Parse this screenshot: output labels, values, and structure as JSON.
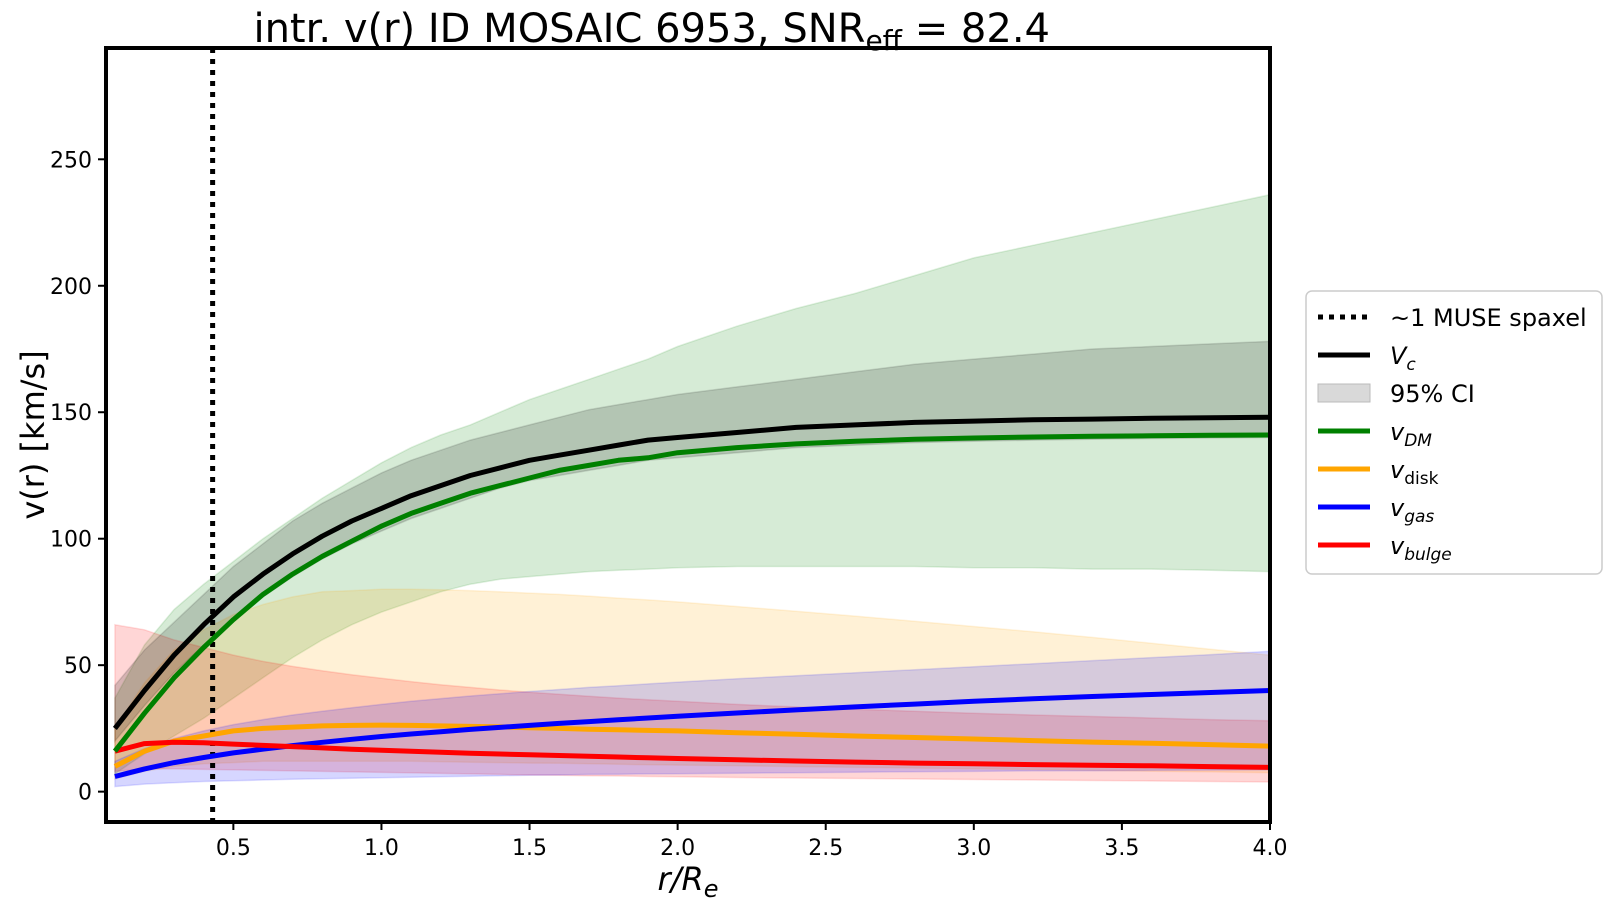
{
  "chart_data": {
    "type": "line",
    "title": {
      "main": "intr. v(r) ID MOSAIC 6953, SNR",
      "sub": "eff",
      "suffix": " = 82.4"
    },
    "xlabel": {
      "main": "r/R",
      "sub": "e"
    },
    "ylabel": "v(r) [km/s]",
    "xlim": [
      0.07,
      4.0
    ],
    "ylim": [
      -12,
      294
    ],
    "xticks": [
      0.5,
      1.0,
      1.5,
      2.0,
      2.5,
      3.0,
      3.5,
      4.0
    ],
    "xtick_labels": [
      "0.5",
      "1.0",
      "1.5",
      "2.0",
      "2.5",
      "3.0",
      "3.5",
      "4.0"
    ],
    "yticks": [
      0,
      50,
      100,
      150,
      200,
      250
    ],
    "ytick_labels": [
      "0",
      "50",
      "100",
      "150",
      "200",
      "250"
    ],
    "x": [
      0.1,
      0.2,
      0.3,
      0.4,
      0.5,
      0.6,
      0.7,
      0.8,
      0.9,
      1.0,
      1.1,
      1.2,
      1.3,
      1.4,
      1.5,
      1.6,
      1.7,
      1.8,
      1.9,
      2.0,
      2.2,
      2.4,
      2.6,
      2.8,
      3.0,
      3.2,
      3.4,
      3.6,
      3.8,
      4.0
    ],
    "spaxel_line_x": 0.43,
    "series": [
      {
        "name": "v_c",
        "label": "V",
        "label_sub": "c",
        "color": "#000000",
        "values": [
          25,
          40,
          54,
          66,
          77,
          86,
          94,
          101,
          107,
          112,
          117,
          121,
          125,
          128,
          131,
          133,
          135,
          137,
          139,
          140,
          142,
          144,
          145,
          146,
          146.5,
          147,
          147.3,
          147.6,
          147.8,
          148
        ],
        "band_lower": [
          20,
          34,
          47,
          58,
          68,
          77,
          85,
          92,
          98,
          103,
          108,
          112,
          116,
          120,
          123,
          125,
          127,
          129,
          131,
          132,
          134,
          136,
          137,
          138,
          138.5,
          139,
          139.3,
          139.6,
          139.8,
          140
        ],
        "band_upper": [
          42,
          56,
          67,
          78,
          89,
          98,
          107,
          114,
          120,
          126,
          131,
          135,
          139,
          142,
          145,
          148,
          151,
          153,
          155,
          157,
          160,
          163,
          166,
          169,
          171,
          173,
          175,
          176,
          177,
          178
        ]
      },
      {
        "name": "v_DM",
        "label": "v",
        "label_sub": "DM",
        "color": "#008000",
        "values": [
          16,
          31,
          45,
          57,
          68,
          78,
          86,
          93,
          99,
          105,
          110,
          114,
          118,
          121,
          124,
          127,
          129,
          131,
          132,
          134,
          136,
          137.5,
          138.5,
          139.3,
          139.8,
          140.2,
          140.5,
          140.7,
          140.9,
          141
        ],
        "band_lower": [
          7,
          15,
          22,
          29,
          37,
          45,
          53,
          60,
          66,
          71,
          75,
          79,
          82,
          84,
          85,
          86,
          87,
          87.5,
          88,
          88.5,
          89,
          89,
          89,
          89,
          88.5,
          88.5,
          88,
          88,
          87.5,
          87
        ],
        "band_upper": [
          37,
          58,
          72,
          82,
          91,
          100,
          108,
          116,
          123,
          130,
          136,
          141,
          145,
          150,
          155,
          159,
          163,
          167,
          171,
          176,
          184,
          191,
          197,
          204,
          211,
          216,
          221,
          226,
          231,
          236
        ]
      },
      {
        "name": "v_disk",
        "label": "v",
        "label_sub": "disk",
        "color": "#ffa500",
        "values": [
          10,
          16,
          20,
          22,
          24,
          25,
          25.5,
          26,
          26.2,
          26.3,
          26.2,
          26,
          25.8,
          25.6,
          25.3,
          25,
          24.7,
          24.5,
          24.2,
          24,
          23.3,
          22.7,
          22,
          21.4,
          20.8,
          20.2,
          19.6,
          19.1,
          18.6,
          18
        ],
        "band_lower": [
          5,
          8,
          10,
          11,
          11.5,
          12,
          12,
          12,
          12,
          12,
          12,
          11.8,
          11.6,
          11.5,
          11.3,
          11.2,
          11,
          10.8,
          10.6,
          10.5,
          10.2,
          9.9,
          9.6,
          9.3,
          9,
          8.7,
          8.4,
          8.1,
          7.8,
          7.5
        ],
        "band_upper": [
          25,
          43,
          56,
          64,
          70,
          74,
          77,
          79,
          79.5,
          80,
          80,
          79.8,
          79.5,
          79,
          78.5,
          78,
          77.3,
          76.5,
          75.8,
          75,
          73.2,
          71.3,
          69.4,
          67.4,
          65.3,
          63.2,
          61,
          58.7,
          56.3,
          54
        ]
      },
      {
        "name": "v_gas",
        "label": "v",
        "label_sub": "gas",
        "color": "#0000ff",
        "values": [
          6,
          9,
          11.5,
          13.5,
          15.3,
          16.8,
          18.2,
          19.5,
          20.7,
          21.8,
          22.8,
          23.7,
          24.6,
          25.4,
          26.2,
          27,
          27.7,
          28.4,
          29.1,
          29.8,
          31.1,
          32.3,
          33.5,
          34.6,
          35.7,
          36.7,
          37.6,
          38.4,
          39.2,
          40
        ],
        "band_lower": [
          2,
          3,
          3.5,
          4,
          4.3,
          4.6,
          4.9,
          5.1,
          5.3,
          5.5,
          5.7,
          5.9,
          6.1,
          6.3,
          6.5,
          6.6,
          6.8,
          6.9,
          7,
          7.1,
          7.3,
          7.5,
          7.7,
          7.9,
          8,
          8.2,
          8.3,
          8.4,
          8.5,
          8.6
        ],
        "band_upper": [
          12,
          17,
          21,
          24,
          26.5,
          28.5,
          30.3,
          31.8,
          33.2,
          34.5,
          35.7,
          36.8,
          37.8,
          38.7,
          39.6,
          40.4,
          41.2,
          41.9,
          42.6,
          43.3,
          44.6,
          45.8,
          47,
          48.2,
          49.4,
          50.6,
          51.8,
          53,
          54.2,
          55.5
        ]
      },
      {
        "name": "v_bulge",
        "label": "v",
        "label_sub": "bulge",
        "color": "#ff0000",
        "values": [
          16,
          19,
          19.5,
          19.3,
          18.8,
          18.3,
          17.8,
          17.3,
          16.8,
          16.4,
          16,
          15.6,
          15.2,
          14.9,
          14.6,
          14.3,
          14,
          13.7,
          13.4,
          13.1,
          12.6,
          12.1,
          11.7,
          11.3,
          11,
          10.7,
          10.4,
          10.2,
          9.9,
          9.6
        ],
        "band_lower": [
          8,
          9,
          9,
          8.8,
          8.6,
          8.4,
          8.2,
          8,
          7.8,
          7.6,
          7.4,
          7.2,
          7,
          6.8,
          6.6,
          6.5,
          6.3,
          6.2,
          6,
          5.9,
          5.6,
          5.4,
          5.2,
          5,
          4.8,
          4.6,
          4.4,
          4.2,
          4,
          3.8
        ],
        "band_upper": [
          66,
          64,
          60,
          57,
          54,
          51.5,
          49.5,
          47.8,
          46.2,
          44.8,
          43.5,
          42.3,
          41.2,
          40.2,
          39.3,
          38.5,
          37.7,
          37,
          36.3,
          35.7,
          34.5,
          33.5,
          32.6,
          31.8,
          31,
          30.3,
          29.7,
          29.1,
          28.5,
          28
        ]
      }
    ],
    "legend": {
      "position": "right-center",
      "entries": [
        {
          "key": "spaxel",
          "label": "~1 MUSE spaxel",
          "style": "dotted",
          "color": "#000000"
        },
        {
          "key": "vc",
          "label": "V",
          "sub": "c",
          "style": "line",
          "color": "#000000"
        },
        {
          "key": "ci",
          "label": "95% CI",
          "style": "patch",
          "color": "#d9d9d9"
        },
        {
          "key": "vdm",
          "label": "v",
          "sub": "DM",
          "style": "line",
          "color": "#008000"
        },
        {
          "key": "vdisk",
          "label": "v",
          "sub": "disk",
          "style": "line",
          "color": "#ffa500"
        },
        {
          "key": "vgas",
          "label": "v",
          "sub": "gas",
          "style": "line",
          "color": "#0000ff"
        },
        {
          "key": "vbulge",
          "label": "v",
          "sub": "bulge",
          "style": "line",
          "color": "#ff0000"
        }
      ]
    }
  }
}
